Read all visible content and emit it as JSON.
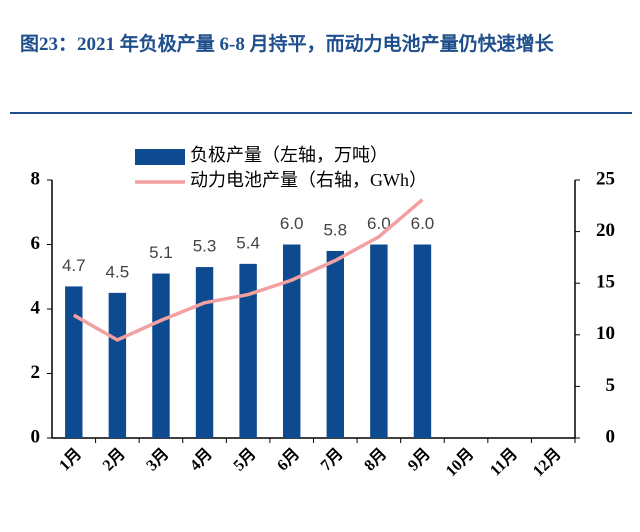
{
  "chart_data": {
    "type": "bar_line",
    "title": "图23：2021 年负极产量 6-8 月持平，而动力电池产量仍快速增长",
    "categories": [
      "1月",
      "2月",
      "3月",
      "4月",
      "5月",
      "6月",
      "7月",
      "8月",
      "9月",
      "10月",
      "11月",
      "12月"
    ],
    "series": [
      {
        "name": "负极产量（左轴，万吨）",
        "color": "#0e4a8f",
        "type": "bar",
        "axis": "y",
        "values": [
          4.7,
          4.5,
          5.1,
          5.3,
          5.4,
          6.0,
          5.8,
          6.0,
          6.0,
          null,
          null,
          null
        ],
        "value_labels": [
          "4.7",
          "4.5",
          "5.1",
          "5.3",
          "5.4",
          "6.0",
          "5.8",
          "6.0",
          "6.0",
          null,
          null,
          null
        ]
      },
      {
        "name": "动力电池产量（右轴，GWh）",
        "color": "#f2a0a0",
        "type": "line",
        "axis": "y2",
        "values": [
          11.9,
          9.5,
          11.4,
          13.1,
          13.9,
          15.3,
          17.2,
          19.5,
          23.1,
          null,
          null,
          null
        ]
      }
    ],
    "ylim": [
      0,
      8
    ],
    "yticks": [
      0,
      2,
      4,
      6,
      8
    ],
    "y2lim": [
      0,
      25
    ],
    "y2ticks": [
      0,
      5,
      10,
      15,
      20,
      25
    ],
    "legend": "top"
  }
}
